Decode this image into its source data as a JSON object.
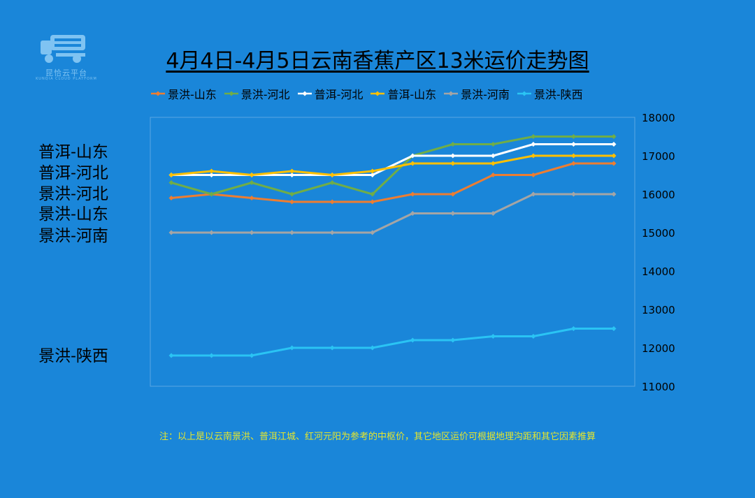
{
  "logo": {
    "text": "昆恰云平台",
    "sub": "KUNQIA CLOUD PLATFORM"
  },
  "title": "4月4日-4月5日云南香蕉产区13米运价走势图",
  "side_labels": [
    {
      "text": "普洱-山东",
      "y": 17000
    },
    {
      "text": "普洱-河北",
      "y": 16500
    },
    {
      "text": "景洪-河北",
      "y": 16000
    },
    {
      "text": "景洪-山东",
      "y": 15500
    },
    {
      "text": "景洪-河南",
      "y": 15000
    },
    {
      "text": "景洪-陕西",
      "y": 12000
    }
  ],
  "note": "注：以上是以云南景洪、普洱江城、红河元阳为参考的中枢价，其它地区运价可根据地理沟距和其它因素推算",
  "chart_data": {
    "type": "line",
    "title": "4月4日-4月5日云南香蕉产区13米运价走势图",
    "xlabel": "",
    "ylabel": "",
    "ylim": [
      11000,
      18000
    ],
    "yticks": [
      "18000",
      "17000",
      "16000",
      "15000",
      "14000",
      "13000",
      "12000",
      "11000"
    ],
    "y_axis_position": "right",
    "legend_position": "top",
    "grid": false,
    "x": [
      1,
      2,
      3,
      4,
      5,
      6,
      7,
      8,
      9,
      10,
      11,
      12
    ],
    "series": [
      {
        "name": "景洪-山东",
        "color": "#ed7d31",
        "values": [
          15900,
          16000,
          15900,
          15800,
          15800,
          15800,
          16000,
          16000,
          16500,
          16500,
          16800,
          16800
        ]
      },
      {
        "name": "景洪-河北",
        "color": "#70ad47",
        "values": [
          16300,
          16000,
          16300,
          16000,
          16300,
          16000,
          17000,
          17300,
          17300,
          17500,
          17500,
          17500
        ]
      },
      {
        "name": "普洱-河北",
        "color": "#ffffff",
        "values": [
          16500,
          16500,
          16500,
          16500,
          16500,
          16500,
          17000,
          17000,
          17000,
          17300,
          17300,
          17300
        ]
      },
      {
        "name": "普洱-山东",
        "color": "#ffc000",
        "values": [
          16500,
          16600,
          16500,
          16600,
          16500,
          16600,
          16800,
          16800,
          16800,
          17000,
          17000,
          17000
        ]
      },
      {
        "name": "景洪-河南",
        "color": "#a5a5a5",
        "values": [
          15000,
          15000,
          15000,
          15000,
          15000,
          15000,
          15500,
          15500,
          15500,
          16000,
          16000,
          16000
        ]
      },
      {
        "name": "景洪-陕西",
        "color": "#2ac4f4",
        "values": [
          11800,
          11800,
          11800,
          12000,
          12000,
          12000,
          12200,
          12200,
          12300,
          12300,
          12500,
          12500
        ]
      }
    ]
  }
}
